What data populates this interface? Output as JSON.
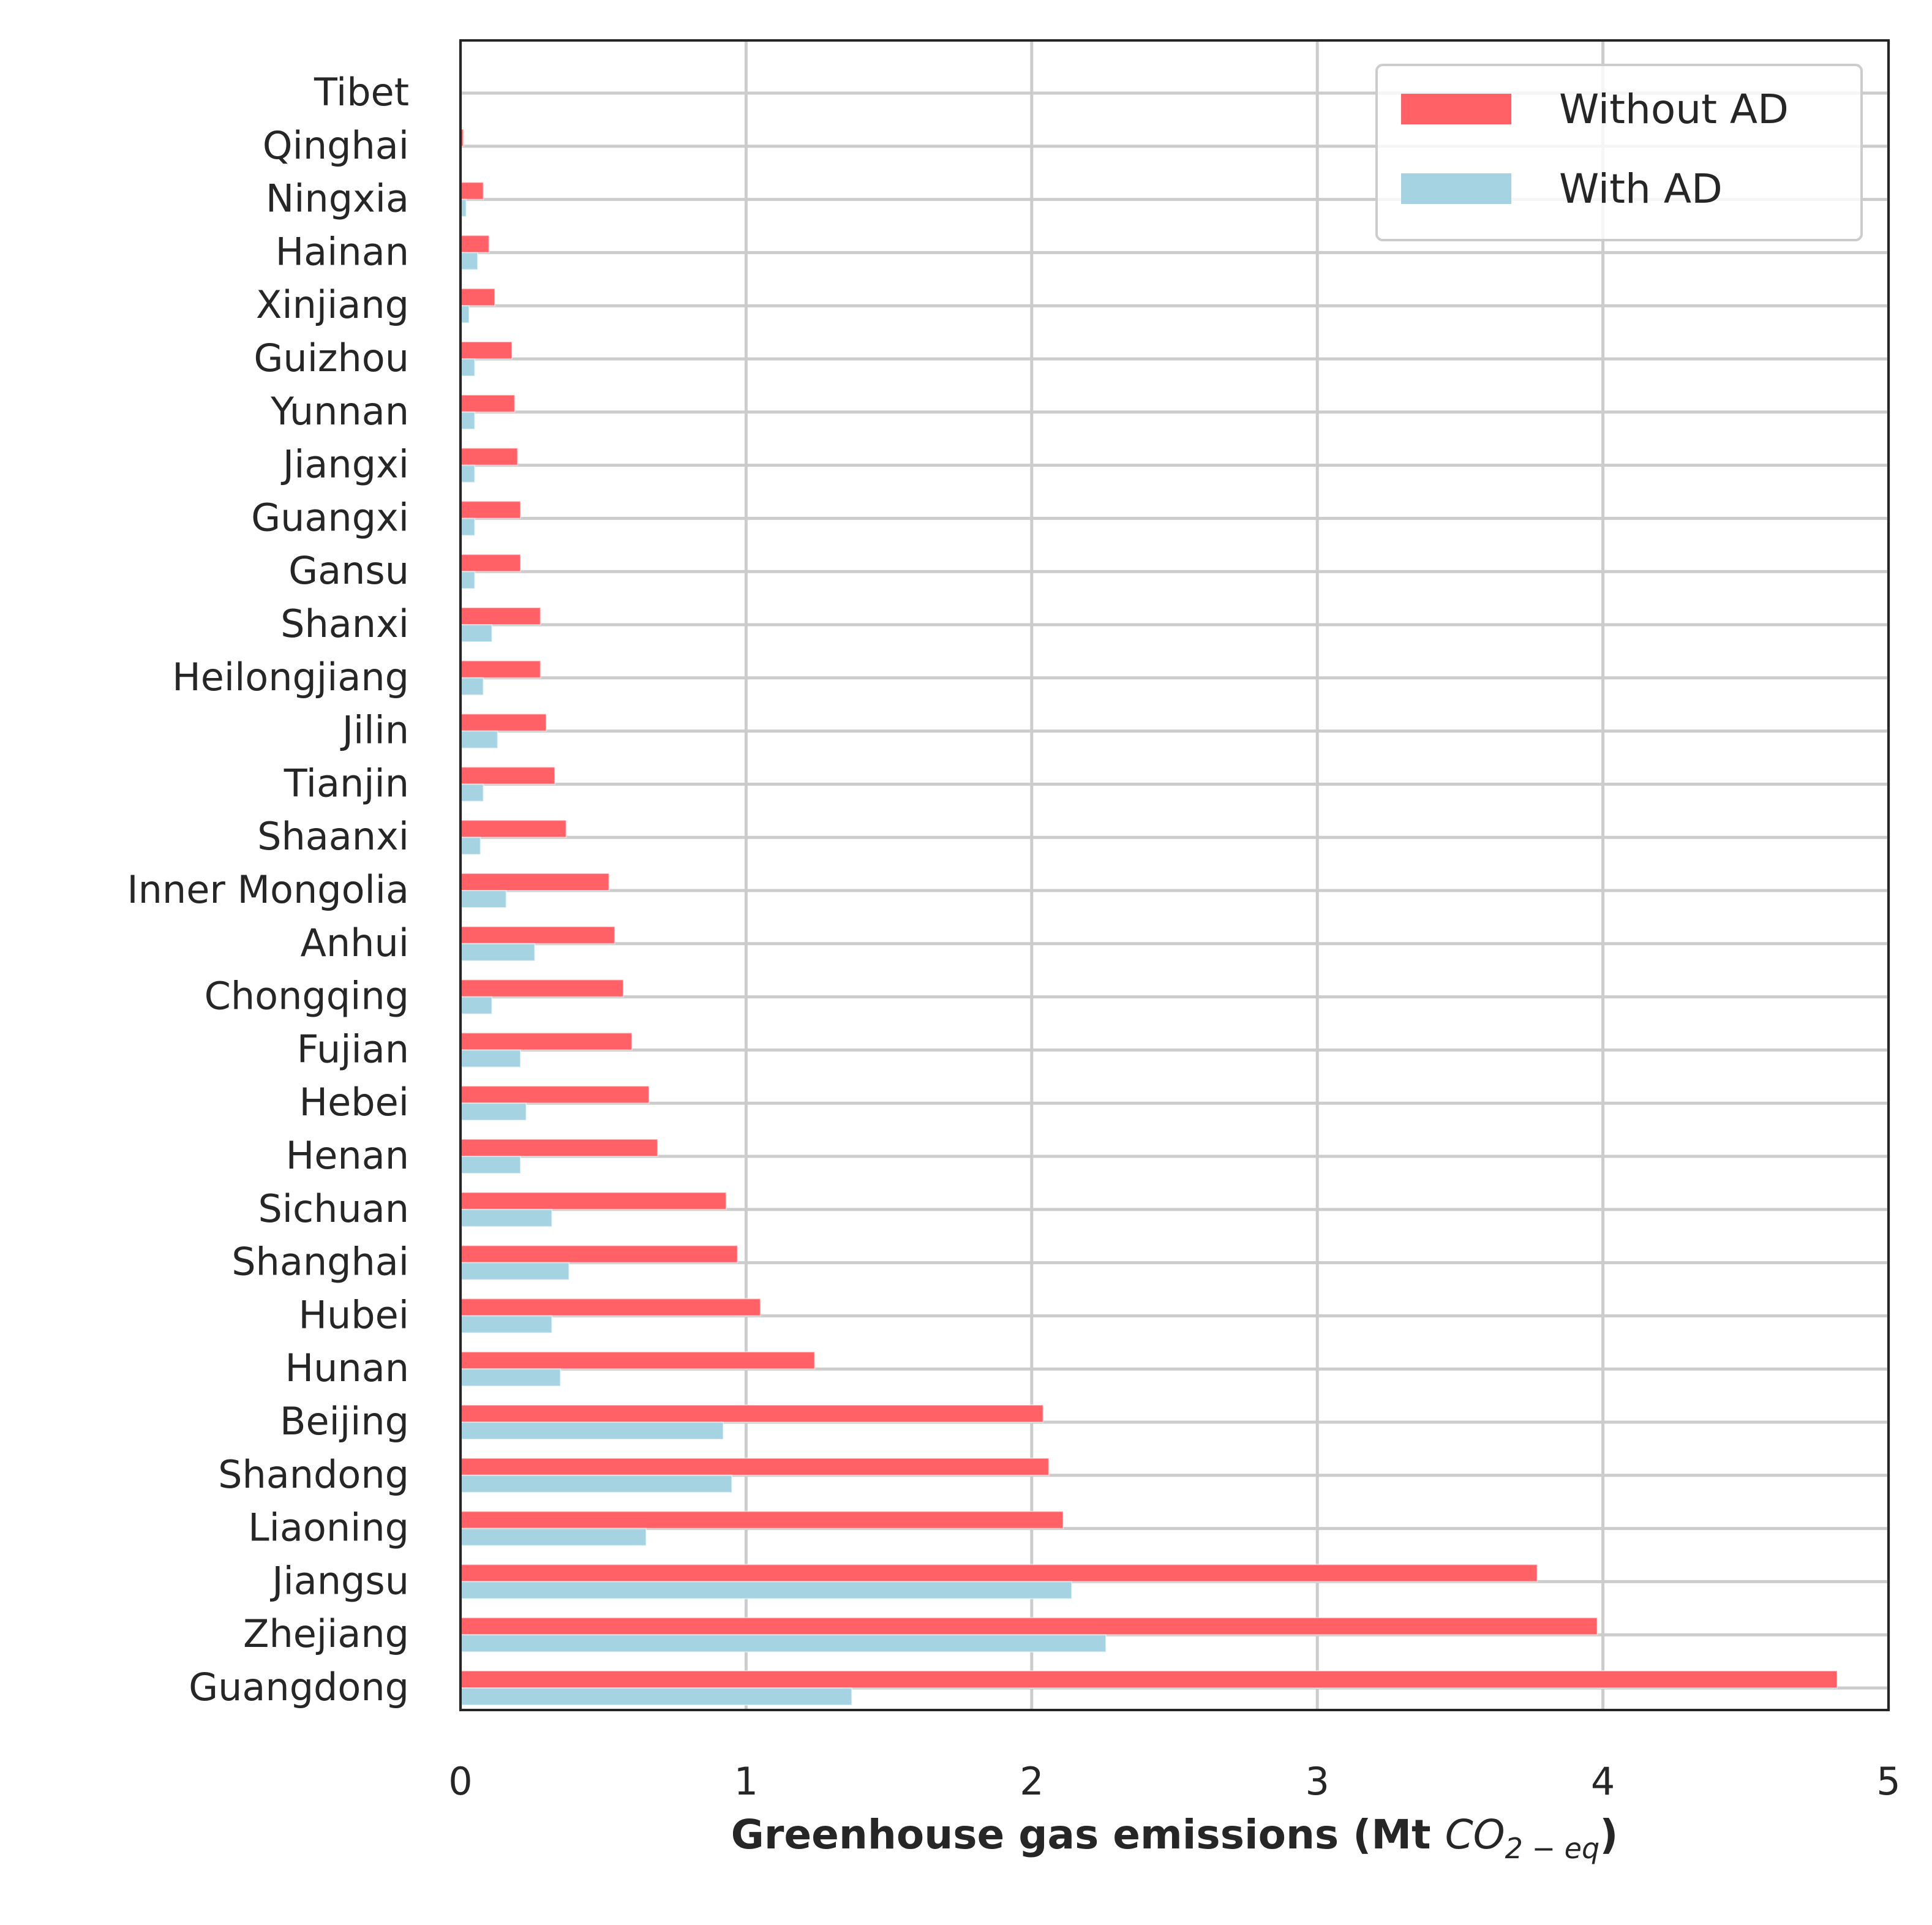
{
  "chart_data": {
    "type": "bar",
    "orientation": "horizontal",
    "categories": [
      "Tibet",
      "Qinghai",
      "Ningxia",
      "Hainan",
      "Xinjiang",
      "Guizhou",
      "Yunnan",
      "Jiangxi",
      "Guangxi",
      "Gansu",
      "Shanxi",
      "Heilongjiang",
      "Jilin",
      "Tianjin",
      "Shaanxi",
      "Inner Mongolia",
      "Anhui",
      "Chongqing",
      "Fujian",
      "Hebei",
      "Henan",
      "Sichuan",
      "Shanghai",
      "Hubei",
      "Hunan",
      "Beijing",
      "Shandong",
      "Liaoning",
      "Jiangsu",
      "Zhejiang",
      "Guangdong"
    ],
    "series": [
      {
        "name": "Without AD",
        "color": "#ff6166",
        "values": [
          0.0,
          0.01,
          0.08,
          0.1,
          0.12,
          0.18,
          0.19,
          0.2,
          0.21,
          0.21,
          0.28,
          0.28,
          0.3,
          0.33,
          0.37,
          0.52,
          0.54,
          0.57,
          0.6,
          0.66,
          0.69,
          0.93,
          0.97,
          1.05,
          1.24,
          2.04,
          2.06,
          2.11,
          3.77,
          3.98,
          4.82
        ]
      },
      {
        "name": "With AD",
        "color": "#a6d3e1",
        "values": [
          0.0,
          0.0,
          0.02,
          0.06,
          0.03,
          0.05,
          0.05,
          0.05,
          0.05,
          0.05,
          0.11,
          0.08,
          0.13,
          0.08,
          0.07,
          0.16,
          0.26,
          0.11,
          0.21,
          0.23,
          0.21,
          0.32,
          0.38,
          0.32,
          0.35,
          0.92,
          0.95,
          0.65,
          2.14,
          2.26,
          1.37
        ]
      }
    ],
    "xlabel": "Greenhouse gas emissions (Mt CO₂₋eq)",
    "xlabel_main": "Greenhouse gas emissions (Mt ",
    "xlabel_co": "CO",
    "xlabel_sub": "2 − eq",
    "xlabel_close": ")",
    "ylabel": "",
    "xlim": [
      0,
      5
    ],
    "xticks": [
      0,
      1,
      2,
      3,
      4,
      5
    ],
    "xtick_labels": [
      "0",
      "1",
      "2",
      "3",
      "4",
      "5"
    ],
    "grid": true,
    "legend_position": "top-right"
  }
}
